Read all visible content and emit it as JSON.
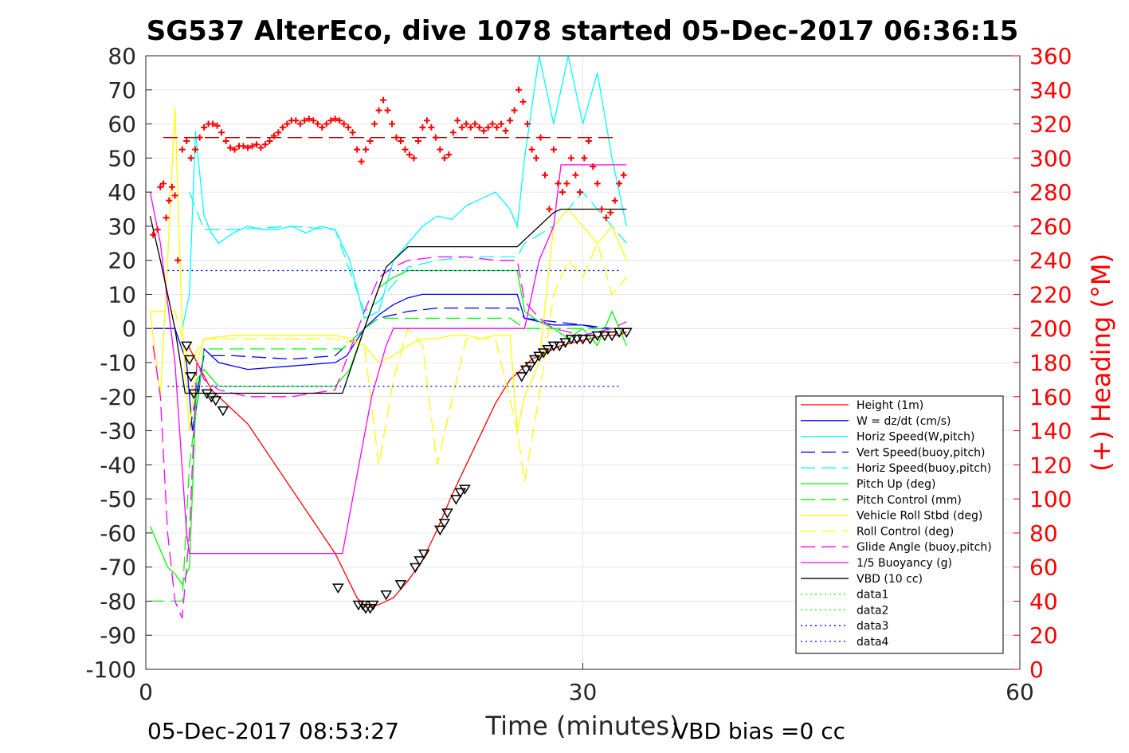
{
  "chart_data": {
    "type": "line",
    "title": "SG537 AlterEco, dive 1078 started 05-Dec-2017 06:36:15",
    "xlabel": "Time (minutes)",
    "ylabel_right": "(+) Heading (°M)",
    "xlim": [
      0,
      60
    ],
    "ylim": [
      -100,
      80
    ],
    "ylim_right": [
      0,
      360
    ],
    "x_ticks": [
      "0",
      "30",
      "60"
    ],
    "y_ticks": [
      "80",
      "70",
      "60",
      "50",
      "40",
      "30",
      "20",
      "10",
      "0",
      "-10",
      "-20",
      "-30",
      "-40",
      "-50",
      "-60",
      "-70",
      "-80",
      "-90",
      "-100"
    ],
    "y_ticks_right": [
      "360",
      "340",
      "320",
      "300",
      "280",
      "260",
      "240",
      "220",
      "200",
      "180",
      "160",
      "140",
      "120",
      "100",
      "80",
      "60",
      "40",
      "20",
      "0"
    ],
    "grid": true,
    "legend_position": "lower-right",
    "footer_left": "05-Dec-2017 08:53:27",
    "footer_right": "VBD bias =0 cc",
    "series": [
      {
        "name": "Height (1m)",
        "color": "#ff0000",
        "style": "solid",
        "x": [
          2.9,
          4.5,
          7,
          10,
          13,
          14.5,
          15.2,
          16,
          17,
          18,
          19,
          20,
          21,
          22,
          23,
          24,
          25,
          25.8,
          26.5,
          27.5,
          28.5,
          29.5,
          30.5,
          31.5,
          32.5,
          33
        ],
        "y": [
          -5,
          -18,
          -28,
          -47,
          -66,
          -79,
          -82,
          -81,
          -79,
          -74,
          -68,
          -59,
          -49,
          -40,
          -31,
          -22,
          -15,
          -12,
          -9,
          -7,
          -5,
          -4,
          -3,
          -2,
          -2,
          -1
        ]
      },
      {
        "name": "W = dz/dt (cm/s)",
        "color": "#0000ff",
        "style": "solid",
        "x": [
          0.5,
          2,
          2.8,
          3.2,
          3.6,
          4,
          5,
          7,
          10,
          13,
          13.8,
          15,
          16,
          17,
          18,
          19,
          20,
          21,
          22,
          23,
          24,
          25.5,
          26,
          27,
          28,
          29,
          30,
          31,
          32,
          33
        ],
        "y": [
          0,
          0,
          -10,
          -30,
          -20,
          -6,
          -10,
          -12,
          -11,
          -10,
          -8,
          0,
          4,
          7,
          9,
          10,
          10,
          10,
          10,
          10,
          10,
          10,
          3,
          2,
          1,
          1,
          1,
          0,
          0,
          0
        ]
      },
      {
        "name": "Horiz Speed(W,pitch)",
        "color": "#00ffff",
        "style": "solid",
        "x": [
          2.5,
          3,
          3.4,
          4,
          4.5,
          5,
          6,
          7,
          8,
          9,
          10,
          11,
          12,
          13,
          14,
          15,
          16,
          17,
          18,
          19,
          20,
          21,
          22,
          23,
          24,
          25,
          25.5,
          26,
          27,
          28,
          29,
          30,
          31,
          32,
          33
        ],
        "y": [
          0,
          10,
          58,
          33,
          28,
          25,
          28,
          30,
          29,
          29,
          30,
          28,
          30,
          29,
          20,
          3,
          5,
          20,
          25,
          30,
          33,
          32,
          36,
          38,
          40,
          35,
          30,
          50,
          80,
          60,
          80,
          60,
          75,
          50,
          30
        ]
      },
      {
        "name": "Vert Speed(buoy,pitch)",
        "color": "#0000ff",
        "style": "dashed",
        "x": [
          3,
          4,
          6,
          10,
          13,
          15,
          16,
          18,
          20,
          22,
          24,
          25.5,
          26,
          28,
          30,
          32,
          33
        ],
        "y": [
          -30,
          -8,
          -8,
          -9,
          -8,
          0,
          3,
          5,
          6,
          6,
          6,
          6,
          3,
          2,
          1,
          0,
          0
        ]
      },
      {
        "name": "Horiz Speed(buoy,pitch)",
        "color": "#00ffff",
        "style": "dashed",
        "x": [
          3,
          4,
          6,
          10,
          13,
          15,
          16,
          18,
          20,
          22,
          24,
          25.5,
          26,
          28,
          30,
          32,
          33
        ],
        "y": [
          40,
          29,
          29,
          30,
          29,
          5,
          8,
          18,
          20,
          21,
          21,
          21,
          25,
          30,
          40,
          30,
          25
        ]
      },
      {
        "name": "Pitch Up (deg)",
        "color": "#00ff00",
        "style": "solid",
        "x": [
          0.3,
          1,
          1.5,
          2,
          2.5,
          3,
          3.5,
          4,
          5,
          7,
          10,
          13,
          14,
          15,
          16,
          17,
          18,
          20,
          22,
          24,
          25.5,
          26,
          27,
          28,
          29,
          30,
          31,
          32,
          33
        ],
        "y": [
          -58,
          -65,
          -70,
          -72,
          -75,
          -70,
          -15,
          -12,
          -17,
          -17,
          -17,
          -17,
          -12,
          0,
          12,
          15,
          17,
          17,
          17,
          17,
          17,
          5,
          2,
          0,
          -3,
          0,
          -5,
          5,
          -5
        ]
      },
      {
        "name": "Pitch Control (mm)",
        "color": "#00ff00",
        "style": "dashed",
        "x": [
          0.3,
          2.5,
          3,
          4,
          10,
          13.5,
          15,
          16,
          18,
          20,
          25,
          26,
          28,
          30,
          33
        ],
        "y": [
          -80,
          -80,
          -40,
          -6,
          -6,
          -6,
          0,
          3,
          3,
          3,
          3,
          0,
          0,
          0,
          0
        ]
      },
      {
        "name": "Vehicle Roll Stbd (deg)",
        "color": "#ffff00",
        "style": "solid",
        "x": [
          0.3,
          1,
          1.5,
          2,
          2.5,
          3,
          3.5,
          4,
          6,
          10,
          13,
          14,
          15,
          16,
          17,
          18,
          19,
          20,
          21,
          22,
          23,
          24,
          25,
          25.5,
          26,
          27,
          28,
          29,
          30,
          31,
          32,
          33
        ],
        "y": [
          5,
          -20,
          20,
          65,
          0,
          -30,
          -10,
          -3,
          -2,
          -2,
          -2,
          -3,
          -5,
          -10,
          -8,
          -5,
          -3,
          -3,
          -2,
          -2,
          -3,
          -2,
          -2,
          -30,
          -20,
          -10,
          30,
          35,
          30,
          25,
          30,
          20
        ]
      },
      {
        "name": "Roll Control (deg)",
        "color": "#ffff00",
        "style": "dashed",
        "x": [
          0.3,
          2,
          3,
          4,
          6,
          10,
          13,
          15,
          16,
          17,
          18,
          19,
          20,
          22,
          24,
          25.5,
          26,
          27,
          28,
          29,
          30,
          31,
          32,
          33
        ],
        "y": [
          5,
          5,
          -10,
          -3,
          -3,
          -3,
          -3,
          -5,
          -40,
          -15,
          0,
          -5,
          -40,
          -3,
          -3,
          -30,
          -45,
          -20,
          10,
          20,
          15,
          25,
          10,
          15
        ]
      },
      {
        "name": "Glide Angle (buoy,pitch)",
        "color": "#ff00ff",
        "style": "dashed",
        "x": [
          0.5,
          1,
          1.5,
          2,
          2.5,
          3,
          3.5,
          4,
          5,
          7,
          10,
          13,
          15,
          16,
          17,
          18,
          20,
          22,
          24,
          25.5,
          26,
          27,
          28,
          30,
          32,
          33
        ],
        "y": [
          -5,
          -20,
          -60,
          -80,
          -85,
          -60,
          -10,
          -15,
          -18,
          -20,
          -20,
          -18,
          5,
          15,
          18,
          20,
          21,
          21,
          20,
          20,
          8,
          3,
          0,
          -2,
          0,
          2
        ]
      },
      {
        "name": "1/5 Buoyancy (g)",
        "color": "#ff00ff",
        "style": "solid",
        "x": [
          0.3,
          1,
          2,
          2.8,
          3,
          10,
          13.5,
          15.5,
          16.5,
          17,
          20,
          24,
          25.5,
          26,
          27,
          28,
          28.5,
          33
        ],
        "y": [
          40,
          25,
          -10,
          -60,
          -66,
          -66,
          -66,
          -20,
          -5,
          0,
          0,
          0,
          0,
          0,
          20,
          30,
          48,
          48
        ]
      },
      {
        "name": "VBD (10 cc)",
        "color": "#000000",
        "style": "solid",
        "x": [
          0.3,
          1,
          2,
          2.7,
          3,
          10,
          13.5,
          15,
          16.5,
          17,
          18,
          24,
          25.5,
          27,
          28,
          28.5,
          33
        ],
        "y": [
          33,
          20,
          0,
          -19,
          -19,
          -19,
          -19,
          0,
          18,
          20,
          24,
          24,
          24,
          30,
          34,
          35,
          35
        ]
      },
      {
        "name": "data1",
        "color": "#00ff00",
        "style": "dotted",
        "x": [
          1.5,
          32.5
        ],
        "y": [
          -17,
          -17
        ]
      },
      {
        "name": "data2",
        "color": "#00ff00",
        "style": "dotted",
        "x": [
          1.5,
          32.5
        ],
        "y": [
          17,
          17
        ]
      },
      {
        "name": "data3",
        "color": "#0000ff",
        "style": "dotted",
        "x": [
          1.5,
          32.5
        ],
        "y": [
          -17,
          -17
        ]
      },
      {
        "name": "data4",
        "color": "#0000ff",
        "style": "dotted",
        "x": [
          1.5,
          32.5
        ],
        "y": [
          17,
          17
        ]
      }
    ],
    "heading_ref": {
      "color": "#c00000",
      "x": [
        1.2,
        32.5
      ],
      "y_right": 312
    },
    "heading_points": {
      "color": "#ff0000",
      "x": [
        0.5,
        0.8,
        1,
        1.2,
        1.4,
        1.6,
        1.8,
        2,
        2.2,
        2.5,
        2.8,
        3.1,
        3.4,
        3.7,
        4,
        4.3,
        4.6,
        4.9,
        5.2,
        5.5,
        5.8,
        6.1,
        6.4,
        6.7,
        7,
        7.3,
        7.6,
        7.9,
        8.2,
        8.5,
        8.8,
        9.1,
        9.4,
        9.7,
        10,
        10.3,
        10.6,
        10.9,
        11.2,
        11.5,
        11.8,
        12.1,
        12.4,
        12.7,
        13,
        13.3,
        13.6,
        13.9,
        14.2,
        14.5,
        14.8,
        15.1,
        15.4,
        15.7,
        16,
        16.3,
        16.6,
        16.9,
        17.2,
        17.5,
        17.8,
        18.1,
        18.4,
        18.7,
        19,
        19.3,
        19.6,
        19.9,
        20.2,
        20.5,
        20.8,
        21.1,
        21.4,
        21.7,
        22,
        22.3,
        22.6,
        22.9,
        23.2,
        23.5,
        23.8,
        24.1,
        24.4,
        24.7,
        25,
        25.3,
        25.6,
        25.9,
        26.2,
        26.5,
        26.8,
        27.1,
        27.4,
        27.7,
        28,
        28.3,
        28.6,
        28.9,
        29.2,
        29.5,
        29.8,
        30.1,
        30.4,
        30.7,
        31,
        31.3,
        31.6,
        31.9,
        32.2,
        32.5,
        32.8
      ],
      "y_right": [
        255,
        258,
        283,
        285,
        265,
        275,
        283,
        278,
        240,
        305,
        310,
        300,
        305,
        312,
        318,
        320,
        320,
        319,
        315,
        310,
        306,
        305,
        307,
        307,
        306,
        307,
        308,
        306,
        308,
        310,
        313,
        315,
        318,
        320,
        322,
        322,
        320,
        322,
        323,
        322,
        320,
        318,
        320,
        322,
        323,
        322,
        320,
        318,
        315,
        305,
        298,
        305,
        310,
        320,
        328,
        334,
        328,
        320,
        312,
        310,
        305,
        302,
        300,
        310,
        318,
        322,
        318,
        312,
        305,
        300,
        302,
        315,
        322,
        318,
        320,
        318,
        320,
        318,
        316,
        318,
        320,
        318,
        320,
        316,
        322,
        328,
        340,
        333,
        320,
        305,
        300,
        312,
        290,
        270,
        305,
        285,
        280,
        285,
        300,
        290,
        280,
        300,
        310,
        295,
        285,
        270,
        265,
        268,
        275,
        285,
        290
      ]
    },
    "vbd_markers": {
      "color": "#000000",
      "x": [
        2.8,
        3,
        3.1,
        3.3,
        4.2,
        4.5,
        4.8,
        5.3,
        13.2,
        14.6,
        14.9,
        15.1,
        15.4,
        15.6,
        16.5,
        17.5,
        18.5,
        18.8,
        19.1,
        20.2,
        20.5,
        20.7,
        21.3,
        21.6,
        21.9,
        25.8,
        26.1,
        26.4,
        26.7,
        27,
        27.3,
        27.6,
        28,
        28.4,
        28.8,
        29.2,
        29.6,
        30,
        30.5,
        31,
        31.5,
        32,
        32.5,
        33
      ],
      "y": [
        -5,
        -9,
        -14,
        -19,
        -19,
        -20,
        -21,
        -24,
        -76,
        -81,
        -81,
        -82,
        -82,
        -81,
        -78,
        -75,
        -70,
        -68,
        -66,
        -59,
        -57,
        -54,
        -50,
        -48,
        -47,
        -14,
        -12,
        -11,
        -9,
        -8,
        -7,
        -6,
        -5,
        -5,
        -4,
        -3,
        -3,
        -3,
        -3,
        -2,
        -2,
        -2,
        -1,
        -1
      ]
    }
  }
}
